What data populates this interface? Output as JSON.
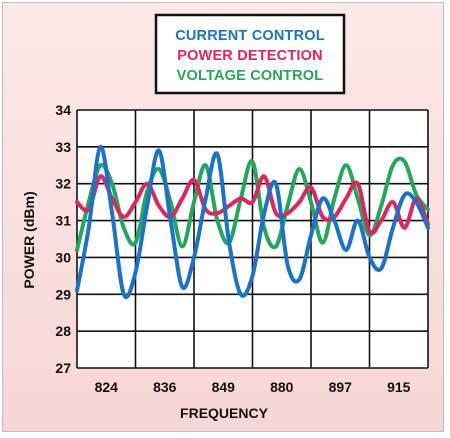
{
  "chart_data": {
    "type": "line",
    "title": "",
    "xlabel": "FREQUENCY",
    "ylabel": "POWER (dBm)",
    "ylim": [
      27,
      34
    ],
    "y_ticks": [
      "27",
      "28",
      "29",
      "30",
      "31",
      "32",
      "33",
      "34"
    ],
    "x_tick_labels": [
      "824",
      "836",
      "849",
      "880",
      "897",
      "915"
    ],
    "grid": true,
    "legend": {
      "placement": "top-center",
      "boxed": true
    },
    "colors": {
      "current": "#1a73c9",
      "power": "#e0245e",
      "voltage": "#22a85a"
    },
    "series": [
      {
        "name": "CURRENT CONTROL",
        "x": [
          0,
          0.2,
          0.4,
          0.6,
          0.8,
          1.0,
          1.2,
          1.4,
          1.6,
          1.8,
          2.0,
          2.2,
          2.4,
          2.6,
          2.8,
          3.0,
          3.2,
          3.4,
          3.6,
          3.8,
          4.0,
          4.2,
          4.4,
          4.6,
          4.8,
          5.0,
          5.2,
          5.4,
          5.6,
          5.8,
          6.0
        ],
        "values": [
          29.1,
          30.8,
          33.0,
          31.2,
          29.0,
          29.6,
          31.4,
          32.9,
          31.0,
          29.2,
          30.0,
          31.6,
          32.8,
          30.4,
          29.0,
          29.5,
          31.2,
          32.0,
          29.8,
          29.4,
          30.6,
          31.6,
          31.0,
          30.2,
          31.0,
          30.0,
          29.7,
          30.8,
          31.7,
          31.5,
          30.8
        ]
      },
      {
        "name": "POWER DETECTION",
        "x": [
          0,
          0.2,
          0.4,
          0.6,
          0.8,
          1.0,
          1.2,
          1.4,
          1.6,
          1.8,
          2.0,
          2.2,
          2.4,
          2.6,
          2.8,
          3.0,
          3.2,
          3.4,
          3.6,
          3.8,
          4.0,
          4.2,
          4.4,
          4.6,
          4.8,
          5.0,
          5.2,
          5.4,
          5.6,
          5.8,
          6.0
        ],
        "values": [
          31.5,
          31.3,
          32.2,
          31.6,
          31.1,
          31.5,
          32.0,
          31.4,
          31.1,
          31.6,
          32.1,
          31.3,
          31.2,
          31.4,
          31.6,
          31.5,
          32.2,
          31.2,
          31.2,
          31.5,
          31.9,
          31.1,
          31.1,
          31.6,
          32.0,
          30.7,
          31.0,
          31.5,
          30.8,
          31.6,
          30.9
        ]
      },
      {
        "name": "VOLTAGE CONTROL",
        "x": [
          0,
          0.2,
          0.4,
          0.6,
          0.8,
          1.0,
          1.2,
          1.4,
          1.6,
          1.8,
          2.0,
          2.2,
          2.4,
          2.6,
          2.8,
          3.0,
          3.2,
          3.4,
          3.6,
          3.8,
          4.0,
          4.2,
          4.4,
          4.6,
          4.8,
          5.0,
          5.2,
          5.4,
          5.6,
          5.8,
          6.0
        ],
        "values": [
          30.2,
          31.5,
          32.5,
          32.0,
          30.8,
          30.4,
          31.8,
          32.4,
          31.5,
          30.3,
          31.5,
          32.5,
          31.0,
          30.4,
          31.6,
          32.6,
          30.8,
          30.3,
          31.4,
          32.4,
          31.5,
          30.4,
          31.6,
          32.5,
          31.6,
          30.6,
          31.4,
          32.5,
          32.6,
          31.7,
          31.3
        ]
      }
    ]
  }
}
